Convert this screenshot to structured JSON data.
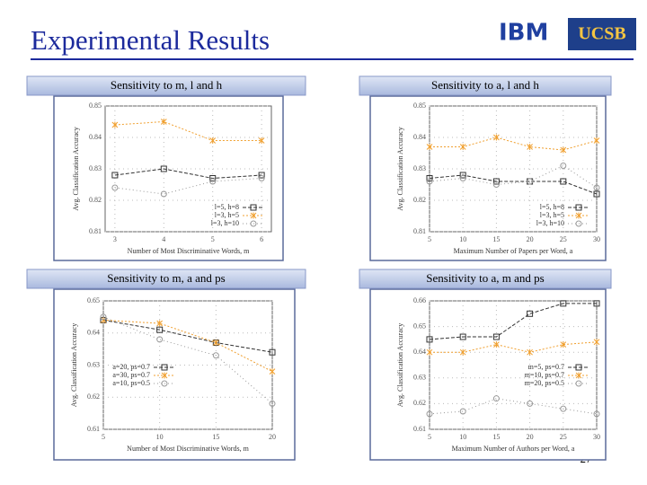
{
  "slide": {
    "title": "Experimental Results",
    "page": "27",
    "logos": [
      "IBM",
      "UCSB"
    ]
  },
  "chart_data": [
    {
      "type": "line",
      "title": "Sensitivity to m, l and h",
      "xlabel": "Number of Most Discriminative Words, m",
      "ylabel": "Avg. Classification Accuracy",
      "x": [
        3,
        4,
        5,
        6
      ],
      "xlim": [
        2.8,
        6.2
      ],
      "xticks": [
        3,
        4,
        5,
        6
      ],
      "ylim": [
        0.81,
        0.85
      ],
      "yticks": [
        0.81,
        0.82,
        0.83,
        0.84,
        0.85
      ],
      "legend": "lower right",
      "series": [
        {
          "name": "l=5, h=8",
          "color": "#333333",
          "marker": "square",
          "values": [
            0.828,
            0.83,
            0.827,
            0.828
          ]
        },
        {
          "name": "l=3, h=5",
          "color": "#f0a030",
          "marker": "x",
          "values": [
            0.844,
            0.845,
            0.839,
            0.839
          ]
        },
        {
          "name": "l=3, h=10",
          "color": "#999999",
          "marker": "circle",
          "values": [
            0.824,
            0.822,
            0.826,
            0.827
          ]
        }
      ]
    },
    {
      "type": "line",
      "title": "Sensitivity to a, l and h",
      "xlabel": "Maximum Number of Papers per Word, a",
      "ylabel": "Avg. Classification Accuracy",
      "x": [
        5,
        10,
        15,
        20,
        25,
        30
      ],
      "xlim": [
        5,
        30
      ],
      "xticks": [
        5,
        10,
        15,
        20,
        25,
        30
      ],
      "ylim": [
        0.81,
        0.85
      ],
      "yticks": [
        0.81,
        0.82,
        0.83,
        0.84,
        0.85
      ],
      "legend": "lower right",
      "series": [
        {
          "name": "l=5, h=8",
          "color": "#333333",
          "marker": "square",
          "values": [
            0.827,
            0.828,
            0.826,
            0.826,
            0.826,
            0.822
          ]
        },
        {
          "name": "l=3, h=5",
          "color": "#f0a030",
          "marker": "x",
          "values": [
            0.837,
            0.837,
            0.84,
            0.837,
            0.836,
            0.839
          ]
        },
        {
          "name": "l=3, h=10",
          "color": "#999999",
          "marker": "circle",
          "values": [
            0.826,
            0.827,
            0.825,
            0.826,
            0.831,
            0.824
          ]
        }
      ]
    },
    {
      "type": "line",
      "title": "Sensitivity to m, a and ps",
      "xlabel": "Number of Most Discriminative Words, m",
      "ylabel": "Avg. Classification Accuracy",
      "x": [
        5,
        10,
        15,
        20
      ],
      "xlim": [
        5,
        20
      ],
      "xticks": [
        5,
        10,
        15,
        20
      ],
      "ylim": [
        0.61,
        0.65
      ],
      "yticks": [
        0.61,
        0.62,
        0.63,
        0.64,
        0.65
      ],
      "legend": "center left",
      "series": [
        {
          "name": "a=20, ps=0.7",
          "color": "#333333",
          "marker": "square",
          "values": [
            0.644,
            0.641,
            0.637,
            0.634
          ]
        },
        {
          "name": "a=30, ps=0.7",
          "color": "#f0a030",
          "marker": "x",
          "values": [
            0.644,
            0.643,
            0.637,
            0.628
          ]
        },
        {
          "name": "a=10, ps=0.5",
          "color": "#999999",
          "marker": "circle",
          "values": [
            0.645,
            0.638,
            0.633,
            0.618
          ]
        }
      ]
    },
    {
      "type": "line",
      "title": "Sensitivity to a, m and ps",
      "xlabel": "Maximum Number of Authors per Word, a",
      "ylabel": "Avg. Classification Accuracy",
      "x": [
        5,
        10,
        15,
        20,
        25,
        30
      ],
      "xlim": [
        5,
        30
      ],
      "xticks": [
        5,
        10,
        15,
        20,
        25,
        30
      ],
      "ylim": [
        0.61,
        0.66
      ],
      "yticks": [
        0.61,
        0.62,
        0.63,
        0.64,
        0.65,
        0.66
      ],
      "legend": "center right",
      "series": [
        {
          "name": "m=5, ps=0.7",
          "color": "#333333",
          "marker": "square",
          "values": [
            0.645,
            0.646,
            0.646,
            0.655,
            0.659,
            0.659
          ]
        },
        {
          "name": "m=10, ps=0.7",
          "color": "#f0a030",
          "marker": "x",
          "values": [
            0.64,
            0.64,
            0.643,
            0.64,
            0.643,
            0.644
          ]
        },
        {
          "name": "m=20, ps=0.5",
          "color": "#999999",
          "marker": "circle",
          "values": [
            0.616,
            0.617,
            0.622,
            0.62,
            0.618,
            0.616
          ]
        }
      ]
    }
  ]
}
